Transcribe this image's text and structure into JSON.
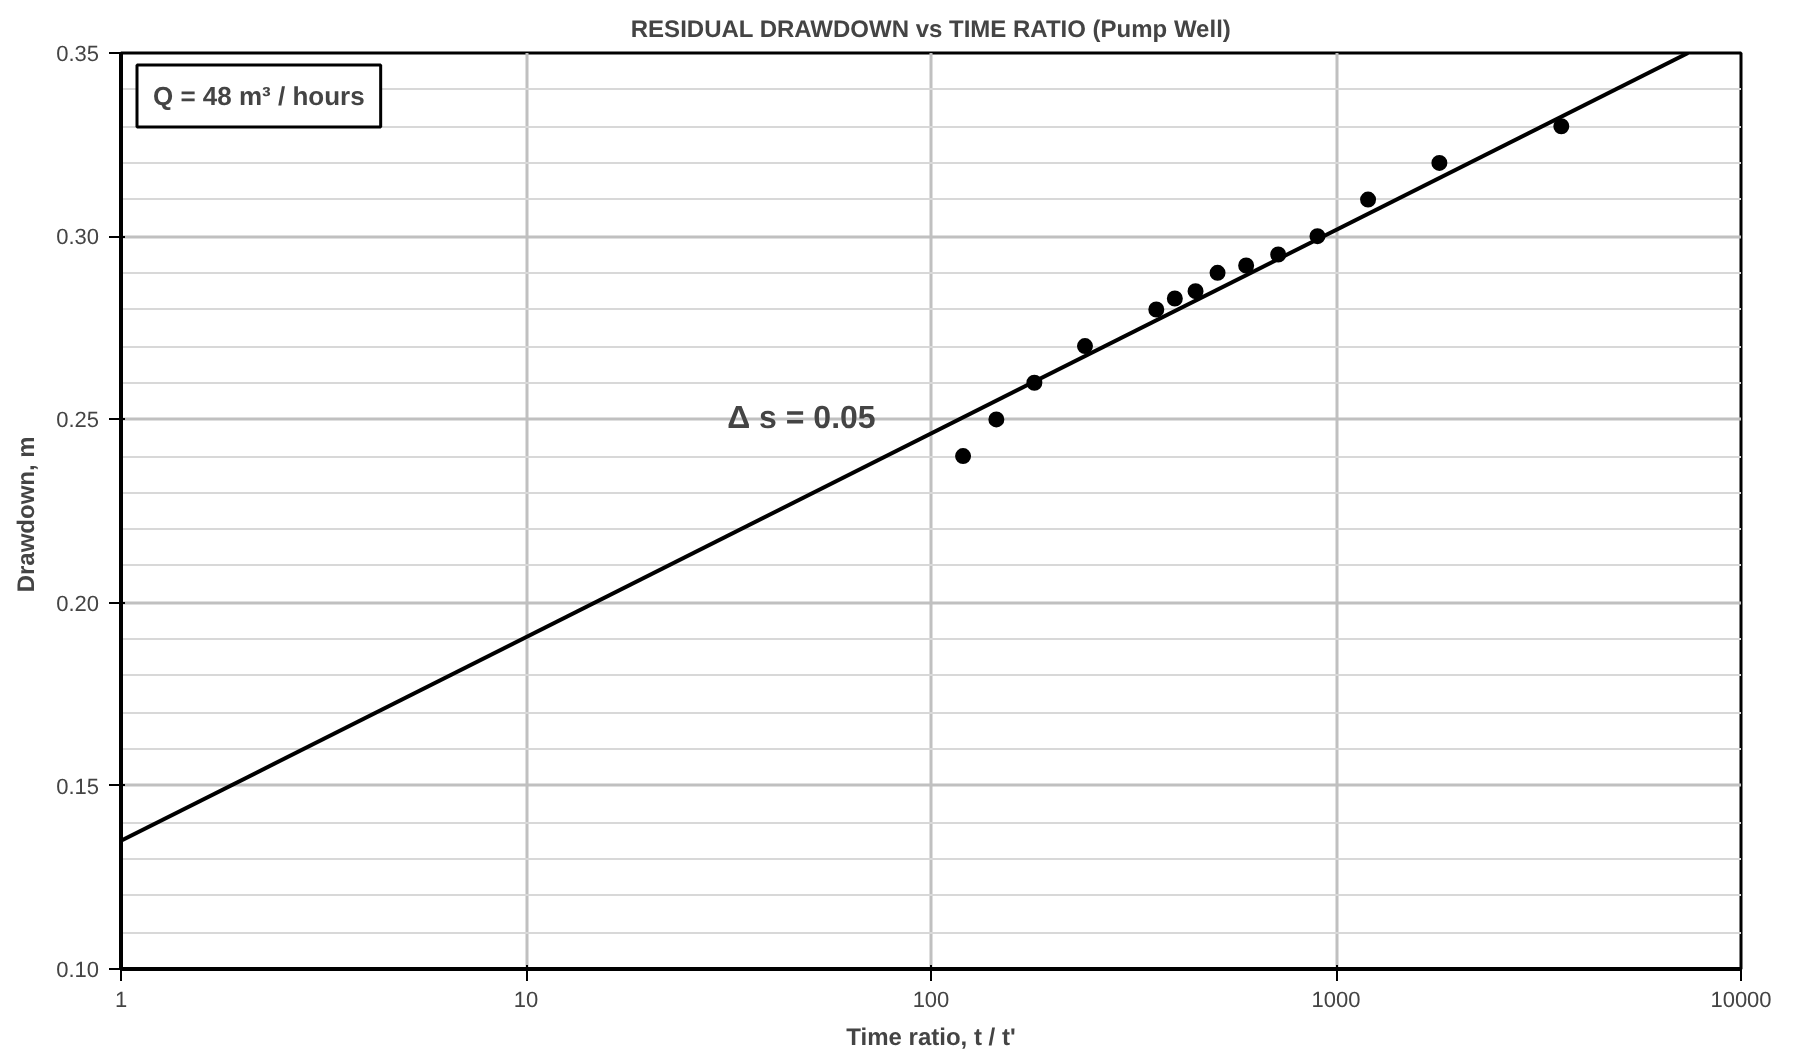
{
  "chart_data": {
    "type": "scatter",
    "title": "RESIDUAL DRAWDOWN vs TIME RATIO (Pump Well)",
    "xlabel": "Time ratio, t / t'",
    "ylabel": "Drawdown,  m",
    "log": "x",
    "xlim": [
      1,
      10000
    ],
    "xticks": [
      1,
      10,
      100,
      1000,
      10000
    ],
    "ylim": [
      0.1,
      0.35
    ],
    "yticks": [
      {
        "value": 0.1,
        "label": "0.10"
      },
      {
        "value": 0.15,
        "label": "0.15"
      },
      {
        "value": 0.2,
        "label": "0.20"
      },
      {
        "value": 0.25,
        "label": "0.25"
      },
      {
        "value": 0.3,
        "label": "0.30"
      },
      {
        "value": 0.35,
        "label": "0.35"
      }
    ],
    "grid": true,
    "series": [
      {
        "marker": "circle",
        "color": "#000000",
        "x": [
          120,
          145,
          180,
          240,
          360,
          400,
          450,
          510,
          600,
          720,
          900,
          1200,
          1800,
          3600
        ],
        "values": [
          0.24,
          0.25,
          0.26,
          0.27,
          0.28,
          0.283,
          0.285,
          0.29,
          0.292,
          0.295,
          0.3,
          0.31,
          0.32,
          0.33
        ]
      },
      {
        "type": "line",
        "marker": "none",
        "color": "#000000",
        "x": [
          1,
          7400
        ],
        "values": [
          0.135,
          0.35
        ]
      }
    ],
    "annotations": [
      "Q = 48 m³ / hours",
      "Δ s = 0.05"
    ]
  }
}
